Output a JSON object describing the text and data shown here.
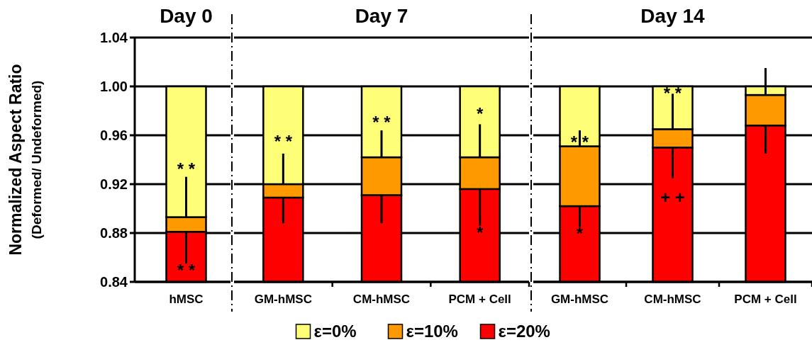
{
  "chart_data": [
    {
      "type": "bar",
      "title": "Day 0",
      "ylabel": "Normalized Aspect Ratio\n(Deformed/ Undeformed)",
      "categories": [
        "hMSC"
      ],
      "ylim": [
        0.84,
        1.04
      ],
      "yticks": [
        {
          "value": 0.84,
          "label": "0.84"
        },
        {
          "value": 0.88,
          "label": "0.88"
        },
        {
          "value": 0.92,
          "label": "0.92"
        },
        {
          "value": 0.96,
          "label": "0.96"
        },
        {
          "value": 1.0,
          "label": "1.00"
        },
        {
          "value": 1.04,
          "label": "1.04"
        }
      ],
      "grid": "y",
      "legend": false,
      "series": [
        {
          "color": "#ff0000",
          "base": [
            0.84
          ],
          "values": [
            0.041
          ],
          "errors": [
            [
              0.855,
              0.881
            ]
          ]
        },
        {
          "color": "#ff9900",
          "base": [
            0.881
          ],
          "values": [
            0.012
          ],
          "errors": [
            [
              0.893,
              0.926
            ]
          ]
        },
        {
          "color": "#ffff77",
          "base": [
            0.893
          ],
          "values": [
            0.107
          ]
        }
      ],
      "annotations": [
        "* *",
        "* *"
      ]
    },
    {
      "type": "bar",
      "title": "Day 7",
      "categories": [
        "GM-hMSC",
        "CM-hMSC",
        "PCM + Cell"
      ],
      "ylim": [
        0.84,
        1.04
      ],
      "yticks": [
        0.84,
        0.88,
        0.92,
        0.96,
        1.0,
        1.04
      ],
      "grid": "y",
      "tick_labels": "x",
      "legend": "bottom",
      "series": [
        {
          "name": "ε=20%",
          "color": "#ff0000",
          "base": [
            0.84,
            0.84,
            0.84
          ],
          "values": [
            0.069,
            0.071,
            0.076
          ],
          "errors": [
            [
              0.888,
              0.909
            ],
            [
              0.888,
              0.911
            ],
            [
              0.886,
              0.916
            ]
          ]
        },
        {
          "name": "ε=10%",
          "color": "#ff9900",
          "base": [
            0.909,
            0.911,
            0.916
          ],
          "values": [
            0.011,
            0.031,
            0.026
          ],
          "errors": [
            [
              0.92,
              0.945
            ],
            [
              0.942,
              0.964
            ],
            [
              0.942,
              0.969
            ]
          ]
        },
        {
          "name": "ε=0%",
          "color": "#ffff77",
          "base": [
            0.92,
            0.942,
            0.942
          ],
          "values": [
            0.08,
            0.058,
            0.058
          ]
        }
      ],
      "annotations": [
        "* *",
        "* *",
        "*",
        "*"
      ]
    },
    {
      "type": "bar",
      "title": "Day 14",
      "categories": [
        "GM-hMSC",
        "CM-hMSC",
        "PCM + Cell"
      ],
      "ylim": [
        0.84,
        1.04
      ],
      "yticks": [
        0.84,
        0.88,
        0.92,
        0.96,
        1.0,
        1.04
      ],
      "grid": "y",
      "tick_labels": "x",
      "legend": false,
      "series": [
        {
          "color": "#ff0000",
          "base": [
            0.84,
            0.84,
            0.84
          ],
          "values": [
            0.062,
            0.11,
            0.128
          ],
          "errors": [
            [
              0.885,
              0.902
            ],
            [
              0.925,
              0.95
            ],
            [
              0.945,
              0.968
            ]
          ]
        },
        {
          "color": "#ff9900",
          "base": [
            0.902,
            0.95,
            0.968
          ],
          "values": [
            0.049,
            0.015,
            0.025
          ],
          "errors": [
            [
              0.951,
              0.964
            ],
            [
              0.965,
              0.994
            ],
            [
              0.993,
              1.015
            ]
          ]
        },
        {
          "color": "#ffff77",
          "base": [
            0.951,
            0.965,
            0.993
          ],
          "values": [
            0.049,
            0.035,
            0.007
          ]
        }
      ],
      "annotations": [
        "* *",
        "*",
        "* *",
        "+ +"
      ]
    }
  ]
}
